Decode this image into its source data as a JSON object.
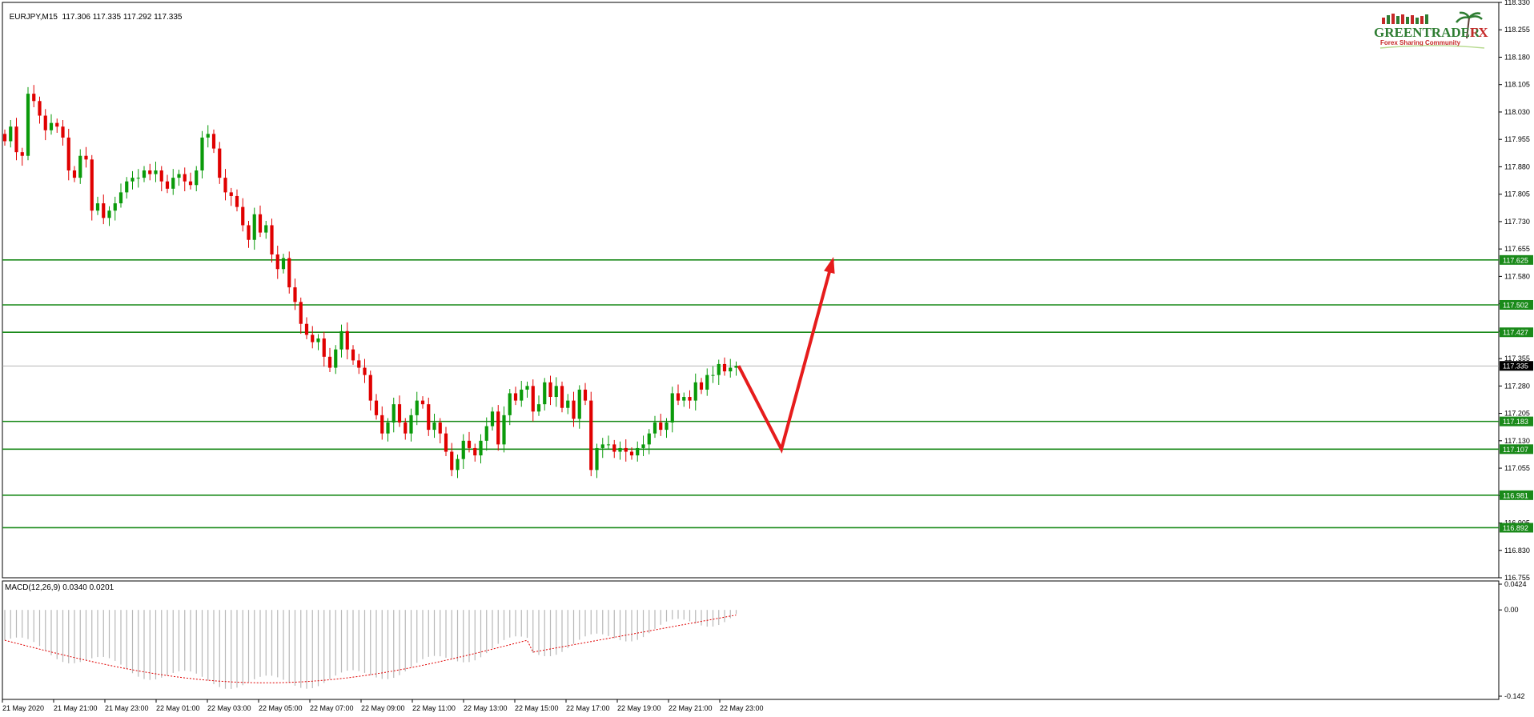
{
  "header": {
    "symbol": "EURJPY,M15",
    "ohlc": "117.306 117.335 117.292 117.335"
  },
  "macd": {
    "label": "MACD(12,26,9) 0.0340 0.0201",
    "scale_top": "0.0424",
    "scale_zero": "0.00",
    "scale_bottom": "-0.142"
  },
  "logo": {
    "name": "GREENTRADER",
    "suffix": "FX",
    "tagline": "Forex Sharing Community"
  },
  "colors": {
    "bull": "#0a9a0a",
    "bear": "#e00000",
    "level_line": "#1a8a1a",
    "level_tag": "#1a8a1a",
    "current_tag": "#000000",
    "macd_hist": "#b8b8b8",
    "macd_signal": "#e00000",
    "arrow": "#e61c1c"
  },
  "chart_data": {
    "type": "candlestick",
    "symbol": "EURJPY",
    "timeframe": "M15",
    "price_axis_labels": [
      "118.330",
      "118.255",
      "118.180",
      "118.105",
      "118.030",
      "117.955",
      "117.880",
      "117.805",
      "117.730",
      "117.655",
      "117.580",
      "117.505",
      "117.430",
      "117.355",
      "117.280",
      "117.205",
      "117.130",
      "117.055",
      "116.980",
      "116.905",
      "116.830",
      "116.755"
    ],
    "time_axis_labels": [
      "21 May 2020",
      "21 May 21:00",
      "21 May 23:00",
      "22 May 01:00",
      "22 May 03:00",
      "22 May 05:00",
      "22 May 07:00",
      "22 May 09:00",
      "22 May 11:00",
      "22 May 13:00",
      "22 May 15:00",
      "22 May 17:00",
      "22 May 19:00",
      "22 May 21:00",
      "22 May 23:00"
    ],
    "ylim": [
      116.755,
      118.33
    ],
    "levels": [
      "117.625",
      "117.502",
      "117.427",
      "117.183",
      "117.107",
      "116.981",
      "116.892"
    ],
    "current_price": "117.335",
    "closes": [
      117.95,
      117.99,
      117.92,
      117.91,
      118.08,
      118.06,
      118.02,
      117.98,
      118.0,
      117.99,
      117.96,
      117.87,
      117.85,
      117.91,
      117.9,
      117.76,
      117.78,
      117.74,
      117.76,
      117.78,
      117.81,
      117.84,
      117.85,
      117.85,
      117.87,
      117.86,
      117.87,
      117.84,
      117.82,
      117.85,
      117.86,
      117.84,
      117.83,
      117.87,
      117.96,
      117.97,
      117.93,
      117.85,
      117.81,
      117.8,
      117.77,
      117.72,
      117.68,
      117.75,
      117.7,
      117.72,
      117.64,
      117.6,
      117.63,
      117.55,
      117.51,
      117.45,
      117.42,
      117.4,
      117.41,
      117.36,
      117.33,
      117.38,
      117.43,
      117.38,
      117.35,
      117.33,
      117.31,
      117.24,
      117.2,
      117.15,
      117.18,
      117.23,
      117.18,
      117.15,
      117.2,
      117.24,
      117.23,
      117.16,
      117.18,
      117.15,
      117.1,
      117.05,
      117.08,
      117.13,
      117.11,
      117.09,
      117.13,
      117.17,
      117.21,
      117.12,
      117.2,
      117.26,
      117.24,
      117.27,
      117.28,
      117.21,
      117.23,
      117.29,
      117.25,
      117.28,
      117.22,
      117.24,
      117.19,
      117.27,
      117.24,
      117.05,
      117.11,
      117.12,
      117.12,
      117.1,
      117.11,
      117.1,
      117.09,
      117.11,
      117.12,
      117.15,
      117.18,
      117.16,
      117.18,
      117.26,
      117.24,
      117.25,
      117.24,
      117.29,
      117.27,
      117.31,
      117.31,
      117.34,
      117.32,
      117.33,
      117.335
    ],
    "projection": {
      "from": "117.335",
      "low": "117.107",
      "target": "117.625"
    },
    "macd_hist_range": [
      -0.142,
      0.0424
    ]
  }
}
